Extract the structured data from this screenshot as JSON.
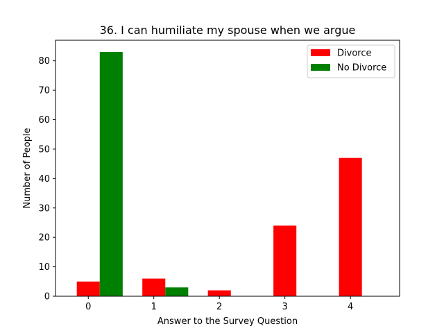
{
  "chart_data": {
    "type": "bar",
    "title": "36. I can humiliate my spouse when we argue",
    "xlabel": "Answer to the Survey Question",
    "ylabel": "Number of People",
    "categories": [
      "0",
      "1",
      "2",
      "3",
      "4"
    ],
    "x": [
      0,
      1,
      2,
      3,
      4
    ],
    "series": [
      {
        "name": "Divorce",
        "color": "#ff0000",
        "values": [
          5,
          6,
          2,
          24,
          47
        ]
      },
      {
        "name": "No Divorce",
        "color": "#008000",
        "values": [
          83,
          3,
          0,
          0,
          0
        ]
      }
    ],
    "xlim": [
      -0.5,
      4.75
    ],
    "ylim": [
      0,
      87
    ],
    "yticks": [
      0,
      10,
      20,
      30,
      40,
      50,
      60,
      70,
      80
    ],
    "grid": false,
    "legend": "upper right"
  }
}
